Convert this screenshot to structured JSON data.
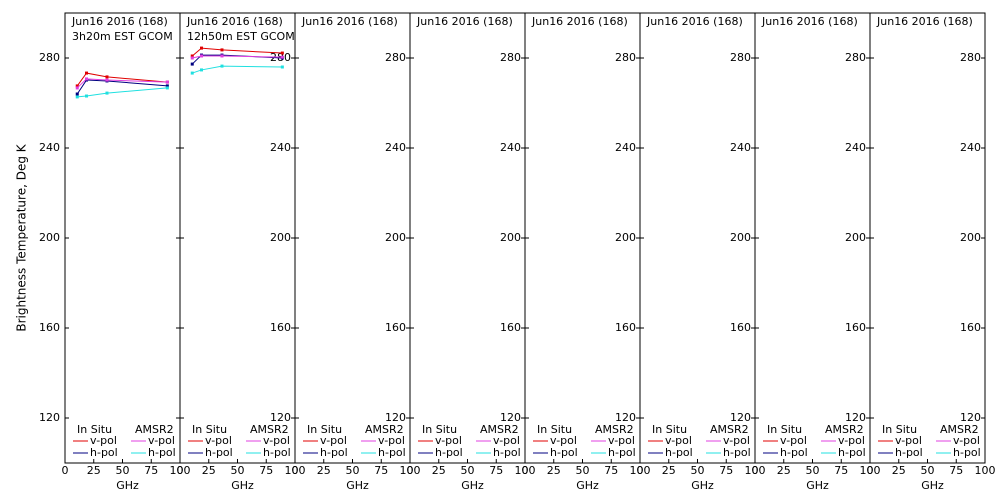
{
  "chart_data": [
    {
      "type": "line",
      "title": "Jun16 2016 (168)",
      "subtitle": "3h20m EST GCOM",
      "ylabel": "Brightness Temperature, Deg K",
      "xlabel": "GHz",
      "x": [
        10.65,
        18.7,
        36.5,
        89
      ],
      "xlim": [
        0,
        100
      ],
      "xticks": [
        0,
        25,
        50,
        75,
        100
      ],
      "ylim": [
        100,
        300
      ],
      "yticks": [
        120,
        160,
        200,
        240,
        280
      ],
      "legend_groups": [
        "In Situ",
        "AMSR2"
      ],
      "series": [
        {
          "name": "v-pol",
          "color": "#e00000",
          "values": [
            267.6,
            273.3,
            271.6,
            269.3
          ]
        },
        {
          "name": "h-pol",
          "color": "#000080",
          "values": [
            264.0,
            270.2,
            269.8,
            267.6
          ]
        },
        {
          "name": "v-pol",
          "color": "#e040e0",
          "values": [
            266.7,
            270.7,
            270.2,
            269.3
          ]
        },
        {
          "name": "h-pol",
          "color": "#20e0e0",
          "values": [
            262.7,
            263.1,
            264.4,
            266.7
          ]
        }
      ]
    },
    {
      "type": "line",
      "title": "Jun16 2016 (168)",
      "subtitle": "12h50m EST GCOM",
      "xlabel": "GHz",
      "x": [
        10.65,
        18.7,
        36.5,
        89
      ],
      "xlim": [
        0,
        100
      ],
      "xticks": [
        0,
        25,
        50,
        75,
        100
      ],
      "ylim": [
        100,
        300
      ],
      "yticks": [
        120,
        160,
        200,
        240,
        280
      ],
      "legend_groups": [
        "In Situ",
        "AMSR2"
      ],
      "series": [
        {
          "name": "v-pol",
          "color": "#e00000",
          "values": [
            280.9,
            284.4,
            283.6,
            282.2
          ]
        },
        {
          "name": "h-pol",
          "color": "#000080",
          "values": [
            277.3,
            281.3,
            281.3,
            280.0
          ]
        },
        {
          "name": "v-pol",
          "color": "#e040e0",
          "values": [
            280.0,
            280.9,
            280.9,
            280.4
          ]
        },
        {
          "name": "h-pol",
          "color": "#20e0e0",
          "values": [
            273.3,
            274.7,
            276.4,
            276.0
          ]
        }
      ]
    },
    {
      "type": "line",
      "title": "Jun16 2016 (168)",
      "xlabel": "GHz",
      "x": [],
      "xlim": [
        0,
        100
      ],
      "xticks": [
        0,
        25,
        50,
        75,
        100
      ],
      "ylim": [
        100,
        300
      ],
      "yticks": [
        120,
        160,
        200,
        240,
        280
      ],
      "legend_groups": [
        "In Situ",
        "AMSR2"
      ],
      "series": [
        {
          "name": "v-pol",
          "color": "#e00000",
          "values": []
        },
        {
          "name": "h-pol",
          "color": "#000080",
          "values": []
        },
        {
          "name": "v-pol",
          "color": "#e040e0",
          "values": []
        },
        {
          "name": "h-pol",
          "color": "#20e0e0",
          "values": []
        }
      ]
    },
    {
      "type": "line",
      "title": "Jun16 2016 (168)",
      "xlabel": "GHz",
      "x": [],
      "xlim": [
        0,
        100
      ],
      "xticks": [
        0,
        25,
        50,
        75,
        100
      ],
      "ylim": [
        100,
        300
      ],
      "yticks": [
        120,
        160,
        200,
        240,
        280
      ],
      "legend_groups": [
        "In Situ",
        "AMSR2"
      ],
      "series": [
        {
          "name": "v-pol",
          "color": "#e00000",
          "values": []
        },
        {
          "name": "h-pol",
          "color": "#000080",
          "values": []
        },
        {
          "name": "v-pol",
          "color": "#e040e0",
          "values": []
        },
        {
          "name": "h-pol",
          "color": "#20e0e0",
          "values": []
        }
      ]
    },
    {
      "type": "line",
      "title": "Jun16 2016 (168)",
      "xlabel": "GHz",
      "x": [],
      "xlim": [
        0,
        100
      ],
      "xticks": [
        0,
        25,
        50,
        75,
        100
      ],
      "ylim": [
        100,
        300
      ],
      "yticks": [
        120,
        160,
        200,
        240,
        280
      ],
      "legend_groups": [
        "In Situ",
        "AMSR2"
      ],
      "series": [
        {
          "name": "v-pol",
          "color": "#e00000",
          "values": []
        },
        {
          "name": "h-pol",
          "color": "#000080",
          "values": []
        },
        {
          "name": "v-pol",
          "color": "#e040e0",
          "values": []
        },
        {
          "name": "h-pol",
          "color": "#20e0e0",
          "values": []
        }
      ]
    },
    {
      "type": "line",
      "title": "Jun16 2016 (168)",
      "xlabel": "GHz",
      "x": [],
      "xlim": [
        0,
        100
      ],
      "xticks": [
        0,
        25,
        50,
        75,
        100
      ],
      "ylim": [
        100,
        300
      ],
      "yticks": [
        120,
        160,
        200,
        240,
        280
      ],
      "legend_groups": [
        "In Situ",
        "AMSR2"
      ],
      "series": [
        {
          "name": "v-pol",
          "color": "#e00000",
          "values": []
        },
        {
          "name": "h-pol",
          "color": "#000080",
          "values": []
        },
        {
          "name": "v-pol",
          "color": "#e040e0",
          "values": []
        },
        {
          "name": "h-pol",
          "color": "#20e0e0",
          "values": []
        }
      ]
    },
    {
      "type": "line",
      "title": "Jun16 2016 (168)",
      "xlabel": "GHz",
      "x": [],
      "xlim": [
        0,
        100
      ],
      "xticks": [
        0,
        25,
        50,
        75,
        100
      ],
      "ylim": [
        100,
        300
      ],
      "yticks": [
        120,
        160,
        200,
        240,
        280
      ],
      "legend_groups": [
        "In Situ",
        "AMSR2"
      ],
      "series": [
        {
          "name": "v-pol",
          "color": "#e00000",
          "values": []
        },
        {
          "name": "h-pol",
          "color": "#000080",
          "values": []
        },
        {
          "name": "v-pol",
          "color": "#e040e0",
          "values": []
        },
        {
          "name": "h-pol",
          "color": "#20e0e0",
          "values": []
        }
      ]
    },
    {
      "type": "line",
      "title": "Jun16 2016 (168)",
      "xlabel": "GHz",
      "x": [],
      "xlim": [
        0,
        100
      ],
      "xticks": [
        0,
        25,
        50,
        75,
        100
      ],
      "ylim": [
        100,
        300
      ],
      "yticks": [
        120,
        160,
        200,
        240,
        280
      ],
      "legend_groups": [
        "In Situ",
        "AMSR2"
      ],
      "series": [
        {
          "name": "v-pol",
          "color": "#e00000",
          "values": []
        },
        {
          "name": "h-pol",
          "color": "#000080",
          "values": []
        },
        {
          "name": "v-pol",
          "color": "#e040e0",
          "values": []
        },
        {
          "name": "h-pol",
          "color": "#20e0e0",
          "values": []
        }
      ]
    }
  ]
}
